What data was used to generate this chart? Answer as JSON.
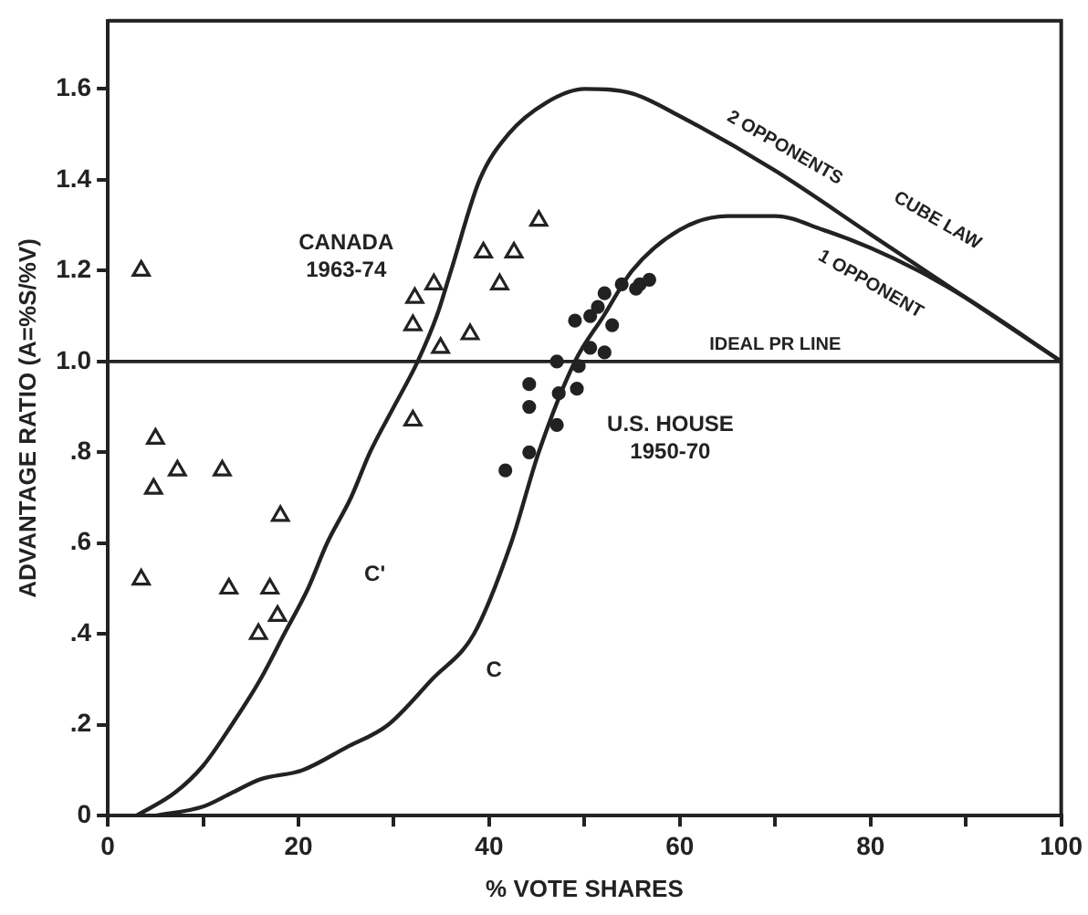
{
  "chart_data": {
    "type": "scatter",
    "xlabel": "% VOTE SHARES",
    "ylabel": "ADVANTAGE RATIO (A=%S/%V)",
    "xlim": [
      0,
      100
    ],
    "ylim": [
      0,
      1.75
    ],
    "xticks": [
      0,
      {
        "value": 10,
        "label": null
      },
      20,
      {
        "value": 30,
        "label": null
      },
      40,
      {
        "value": 50,
        "label": null
      },
      60,
      {
        "value": 70,
        "label": null
      },
      80,
      {
        "value": 90,
        "label": null
      },
      100
    ],
    "yticks": [
      0,
      {
        "value": 0.2,
        "label": ".2"
      },
      {
        "value": 0.4,
        "label": ".4"
      },
      {
        "value": 0.6,
        "label": ".6"
      },
      {
        "value": 0.8,
        "label": ".8"
      },
      {
        "value": 1,
        "label": "1.0"
      },
      1.2,
      1.4,
      1.6
    ],
    "grid": false,
    "legend": false,
    "series": [
      {
        "name": "CANADA 1963-74",
        "marker": "triangle",
        "color": "#222222",
        "x": [
          3.5,
          3.5,
          5.0,
          4.8,
          7.3,
          12.0,
          12.7,
          15.8,
          17.0,
          17.8,
          18.1,
          32.0,
          32.0,
          32.2,
          34.2,
          34.9,
          38.0,
          39.4,
          41.1,
          42.6,
          45.2
        ],
        "values": [
          1.2,
          0.52,
          0.83,
          0.72,
          0.76,
          0.76,
          0.5,
          0.4,
          0.5,
          0.44,
          0.66,
          0.87,
          1.08,
          1.14,
          1.17,
          1.03,
          1.06,
          1.24,
          1.17,
          1.24,
          1.31
        ]
      },
      {
        "name": "U.S. HOUSE 1950-70",
        "marker": "circle",
        "color": "#222222",
        "x": [
          41.7,
          44.2,
          44.2,
          44.2,
          47.1,
          47.3,
          47.1,
          49.0,
          49.4,
          49.2,
          50.6,
          50.6,
          52.1,
          51.4,
          52.9,
          52.1,
          53.9,
          55.8,
          56.8,
          55.4
        ],
        "values": [
          0.76,
          0.95,
          0.9,
          0.8,
          1.0,
          0.93,
          0.86,
          1.09,
          0.99,
          0.94,
          1.1,
          1.03,
          1.15,
          1.12,
          1.08,
          1.02,
          1.17,
          1.17,
          1.18,
          1.16
        ]
      },
      {
        "name": "C'",
        "type": "line",
        "marker": "none",
        "line_style": "solid",
        "color": "#222222",
        "x": [
          3,
          7,
          10,
          13,
          16,
          18.5,
          21,
          23,
          25.5,
          27.5,
          30,
          32.5,
          34.5,
          36,
          39,
          42,
          46,
          50,
          55,
          60,
          70,
          80,
          90,
          100
        ],
        "values": [
          0,
          0.05,
          0.11,
          0.2,
          0.3,
          0.4,
          0.5,
          0.6,
          0.7,
          0.8,
          0.9,
          1.0,
          1.1,
          1.2,
          1.4,
          1.5,
          1.57,
          1.6,
          1.59,
          1.54,
          1.42,
          1.28,
          1.14,
          1.0
        ]
      },
      {
        "name": "C",
        "type": "line",
        "marker": "none",
        "line_style": "solid",
        "color": "#222222",
        "x": [
          5,
          10,
          13,
          16,
          20.4,
          25,
          29.4,
          34,
          38.4,
          42.3,
          45.2,
          49,
          52,
          55,
          60,
          65,
          70,
          75,
          80,
          85,
          90,
          100
        ],
        "values": [
          0,
          0.02,
          0.05,
          0.08,
          0.1,
          0.15,
          0.2,
          0.3,
          0.4,
          0.6,
          0.8,
          1.0,
          1.1,
          1.2,
          1.29,
          1.32,
          1.32,
          1.29,
          1.25,
          1.2,
          1.14,
          1.0
        ]
      }
    ],
    "ref_lines": [
      {
        "axis": "y",
        "value": 1,
        "label": "IDEAL PR LINE",
        "color": "#222222"
      }
    ],
    "annotations": [
      "CUBE LAW",
      "2 OPPONENTS",
      "1 OPPONENT"
    ]
  }
}
